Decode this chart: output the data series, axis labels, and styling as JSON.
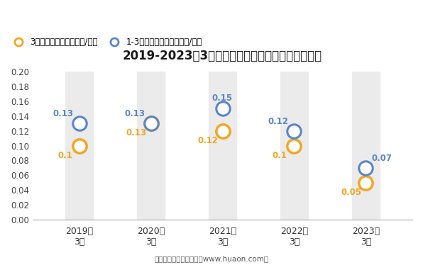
{
  "title": "2019-2023年3月郑州商品交易所棉花期权成交均价",
  "categories": [
    "2019年\n3月",
    "2020年\n3月",
    "2021年\n3月",
    "2022年\n3月",
    "2023年\n3月"
  ],
  "series1_label": "3月期权成交均价（万元/手）",
  "series2_label": "1-3月期权成交均价（万元/手）",
  "series1_values": [
    0.1,
    0.13,
    0.12,
    0.1,
    0.05
  ],
  "series2_values": [
    0.13,
    0.13,
    0.15,
    0.12,
    0.07
  ],
  "series1_color": "#f5a623",
  "series2_color": "#5b87c5",
  "ylim": [
    0,
    0.2
  ],
  "yticks": [
    0,
    0.02,
    0.04,
    0.06,
    0.08,
    0.1,
    0.12,
    0.14,
    0.16,
    0.18,
    0.2
  ],
  "band_color": "#ebebeb",
  "background_color": "#ffffff",
  "footer": "制图：华经产业研究院（www.huaon.com）",
  "marker_size": 14,
  "annotation_fontsize": 8.5
}
